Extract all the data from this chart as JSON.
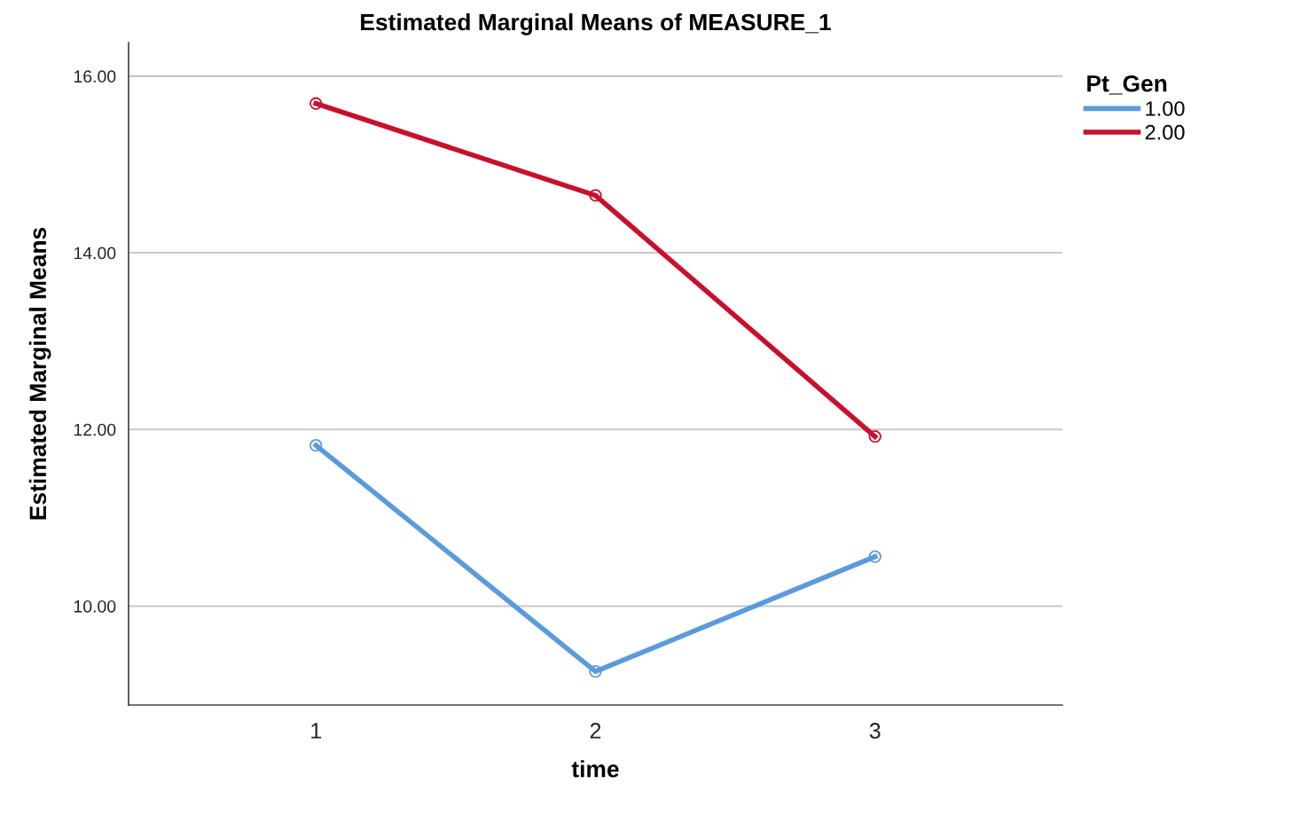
{
  "chart_data": {
    "type": "line",
    "title": "Estimated Marginal Means of MEASURE_1",
    "xlabel": "time",
    "ylabel": "Estimated Marginal Means",
    "legend_title": "Pt_Gen",
    "categories": [
      "1",
      "2",
      "3"
    ],
    "series": [
      {
        "name": "1.00",
        "color": "#5b9bdb",
        "values": [
          11.82,
          9.26,
          10.56
        ]
      },
      {
        "name": "2.00",
        "color": "#c8102e",
        "values": [
          15.69,
          14.65,
          11.92
        ]
      }
    ],
    "ylim": [
      8.88,
      16.38
    ],
    "yticks": [
      {
        "value": 10,
        "label": "10.00"
      },
      {
        "value": 12,
        "label": "12.00"
      },
      {
        "value": 14,
        "label": "14.00"
      },
      {
        "value": 16,
        "label": "16.00"
      }
    ],
    "grid": "y",
    "legend": "top right",
    "marker": "circle",
    "line_style": "solid"
  }
}
